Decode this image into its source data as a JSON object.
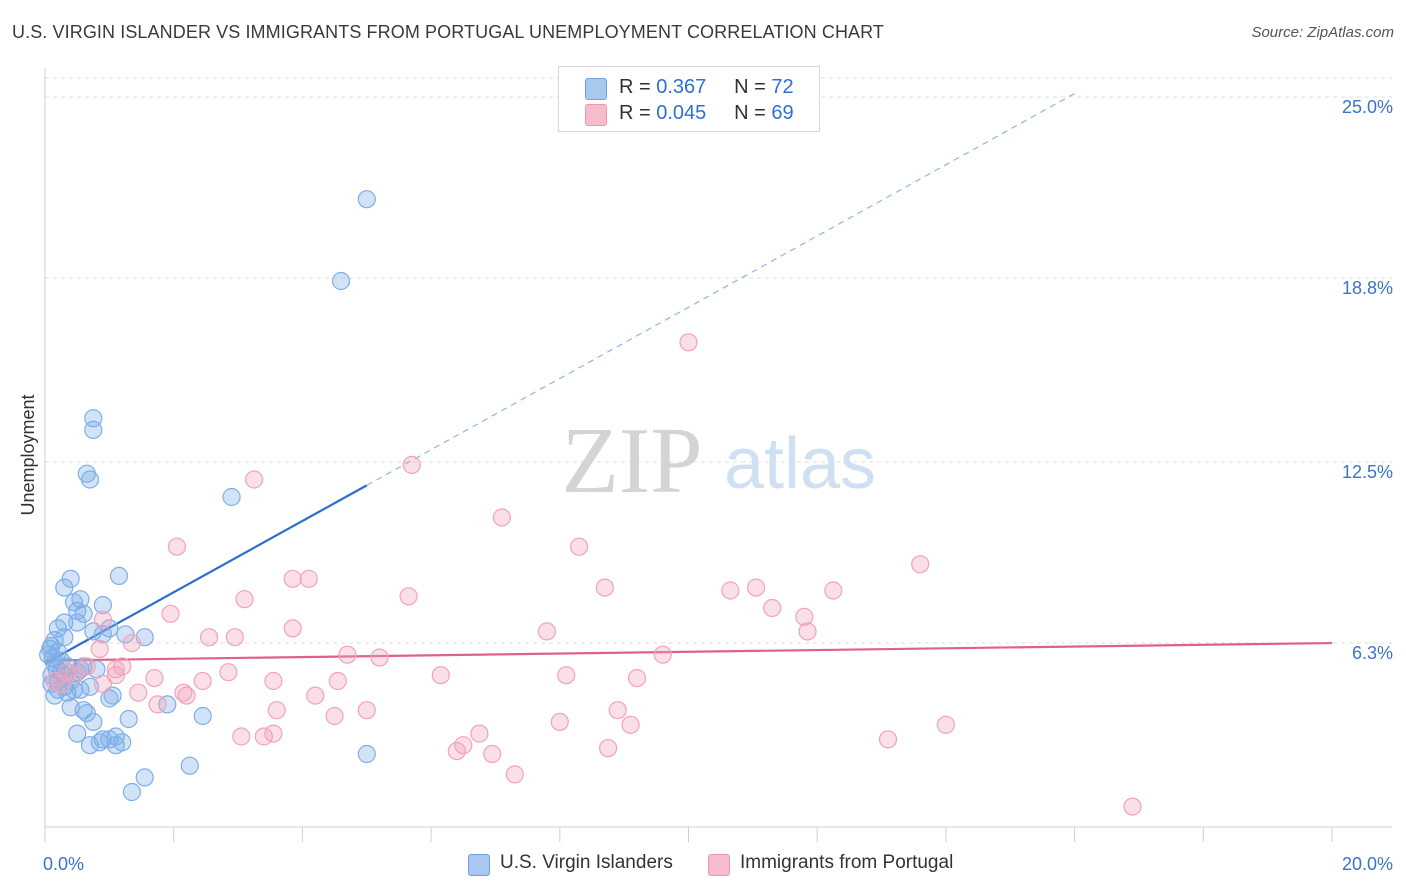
{
  "header": {
    "title": "U.S. VIRGIN ISLANDER VS IMMIGRANTS FROM PORTUGAL UNEMPLOYMENT CORRELATION CHART",
    "source": "Source: ZipAtlas.com"
  },
  "watermark": {
    "zip": "ZIP",
    "atlas": "atlas"
  },
  "stats_legend": {
    "rows": [
      {
        "r_label": "R =",
        "r_value": "0.367",
        "n_label": "N =",
        "n_value": "72",
        "color": "#a9c8f0"
      },
      {
        "r_label": "R =",
        "r_value": "0.045",
        "n_label": "N =",
        "n_value": "69",
        "color": "#f6bccc"
      }
    ]
  },
  "chart_data": {
    "type": "scatter",
    "title": "U.S. VIRGIN ISLANDER VS IMMIGRANTS FROM PORTUGAL UNEMPLOYMENT CORRELATION CHART",
    "xlabel": "",
    "ylabel": "Unemployment",
    "xlim": [
      0,
      20
    ],
    "ylim": [
      0,
      25.0
    ],
    "x_tick_labels": [
      "0.0%",
      "20.0%"
    ],
    "y_ticks": [
      6.3,
      12.5,
      18.8,
      25.0
    ],
    "y_tick_labels": [
      "6.3%",
      "12.5%",
      "18.8%",
      "25.0%"
    ],
    "grid": "horizontal dashed",
    "legend_position": "bottom",
    "series": [
      {
        "name": "U.S. Virgin Islanders",
        "color": "#7eaee8",
        "line_color": "#2a6fd0",
        "trend": {
          "x0": 0.0,
          "y0": 5.6,
          "x1": 5.0,
          "y1": 11.7,
          "dashed_to_x": 20.0
        },
        "points": [
          [
            5.0,
            21.5
          ],
          [
            4.6,
            18.7
          ],
          [
            0.75,
            14.0
          ],
          [
            0.75,
            13.6
          ],
          [
            0.65,
            12.1
          ],
          [
            0.7,
            11.9
          ],
          [
            2.9,
            11.3
          ],
          [
            1.15,
            8.6
          ],
          [
            0.4,
            8.5
          ],
          [
            0.3,
            8.2
          ],
          [
            0.55,
            7.8
          ],
          [
            0.45,
            7.7
          ],
          [
            0.5,
            7.4
          ],
          [
            0.9,
            7.6
          ],
          [
            0.6,
            7.3
          ],
          [
            0.3,
            7.0
          ],
          [
            0.5,
            7.0
          ],
          [
            0.2,
            6.8
          ],
          [
            0.75,
            6.7
          ],
          [
            0.9,
            6.6
          ],
          [
            1.0,
            6.8
          ],
          [
            1.25,
            6.6
          ],
          [
            1.55,
            6.5
          ],
          [
            0.3,
            6.5
          ],
          [
            0.15,
            6.4
          ],
          [
            0.1,
            6.2
          ],
          [
            0.2,
            6.0
          ],
          [
            0.12,
            5.8
          ],
          [
            0.05,
            5.9
          ],
          [
            0.15,
            5.6
          ],
          [
            0.25,
            5.7
          ],
          [
            0.35,
            5.5
          ],
          [
            0.55,
            5.4
          ],
          [
            0.6,
            5.5
          ],
          [
            0.8,
            5.4
          ],
          [
            0.3,
            5.2
          ],
          [
            0.4,
            5.0
          ],
          [
            0.2,
            5.0
          ],
          [
            0.1,
            4.9
          ],
          [
            0.45,
            4.7
          ],
          [
            0.55,
            4.7
          ],
          [
            0.7,
            4.8
          ],
          [
            0.35,
            4.6
          ],
          [
            0.2,
            4.7
          ],
          [
            0.15,
            4.5
          ],
          [
            1.05,
            4.5
          ],
          [
            1.0,
            4.4
          ],
          [
            0.4,
            4.1
          ],
          [
            0.6,
            4.0
          ],
          [
            0.65,
            3.9
          ],
          [
            1.9,
            4.2
          ],
          [
            2.45,
            3.8
          ],
          [
            1.3,
            3.7
          ],
          [
            0.75,
            3.6
          ],
          [
            0.5,
            3.2
          ],
          [
            1.0,
            3.0
          ],
          [
            1.1,
            3.1
          ],
          [
            0.85,
            2.9
          ],
          [
            0.9,
            3.0
          ],
          [
            1.2,
            2.9
          ],
          [
            0.7,
            2.8
          ],
          [
            1.1,
            2.8
          ],
          [
            5.0,
            2.5
          ],
          [
            2.25,
            2.1
          ],
          [
            1.55,
            1.7
          ],
          [
            1.35,
            1.2
          ],
          [
            0.25,
            5.3
          ],
          [
            0.1,
            5.2
          ],
          [
            0.3,
            4.8
          ],
          [
            0.5,
            5.3
          ],
          [
            0.08,
            6.1
          ],
          [
            0.18,
            5.4
          ]
        ]
      },
      {
        "name": "Immigrants from Portugal",
        "color": "#f2a3bb",
        "line_color": "#e0608c",
        "trend": {
          "x0": 0.0,
          "y0": 5.7,
          "x1": 20.0,
          "y1": 6.3
        },
        "points": [
          [
            10.0,
            16.6
          ],
          [
            5.7,
            12.4
          ],
          [
            3.25,
            11.9
          ],
          [
            7.1,
            10.6
          ],
          [
            2.05,
            9.6
          ],
          [
            8.3,
            9.6
          ],
          [
            13.6,
            9.0
          ],
          [
            3.85,
            8.5
          ],
          [
            4.1,
            8.5
          ],
          [
            8.7,
            8.2
          ],
          [
            10.65,
            8.1
          ],
          [
            11.05,
            8.2
          ],
          [
            12.25,
            8.1
          ],
          [
            5.65,
            7.9
          ],
          [
            3.1,
            7.8
          ],
          [
            11.3,
            7.5
          ],
          [
            1.95,
            7.3
          ],
          [
            11.8,
            7.2
          ],
          [
            0.9,
            7.1
          ],
          [
            3.85,
            6.8
          ],
          [
            7.8,
            6.7
          ],
          [
            11.85,
            6.7
          ],
          [
            2.55,
            6.5
          ],
          [
            2.95,
            6.5
          ],
          [
            1.35,
            6.3
          ],
          [
            0.85,
            6.1
          ],
          [
            4.7,
            5.9
          ],
          [
            5.2,
            5.8
          ],
          [
            9.6,
            5.9
          ],
          [
            1.1,
            5.4
          ],
          [
            1.1,
            5.2
          ],
          [
            2.85,
            5.3
          ],
          [
            6.15,
            5.2
          ],
          [
            8.1,
            5.2
          ],
          [
            9.2,
            5.1
          ],
          [
            1.7,
            5.1
          ],
          [
            2.45,
            5.0
          ],
          [
            3.55,
            5.0
          ],
          [
            4.55,
            5.0
          ],
          [
            0.15,
            5.0
          ],
          [
            2.15,
            4.6
          ],
          [
            1.45,
            4.6
          ],
          [
            2.2,
            4.5
          ],
          [
            4.2,
            4.5
          ],
          [
            0.25,
            4.9
          ],
          [
            1.75,
            4.2
          ],
          [
            3.6,
            4.0
          ],
          [
            8.9,
            4.0
          ],
          [
            4.5,
            3.8
          ],
          [
            5.0,
            4.0
          ],
          [
            8.0,
            3.6
          ],
          [
            9.1,
            3.5
          ],
          [
            14.0,
            3.5
          ],
          [
            3.05,
            3.1
          ],
          [
            3.4,
            3.1
          ],
          [
            3.55,
            3.2
          ],
          [
            6.75,
            3.2
          ],
          [
            13.1,
            3.0
          ],
          [
            6.5,
            2.8
          ],
          [
            6.4,
            2.6
          ],
          [
            6.95,
            2.5
          ],
          [
            8.75,
            2.7
          ],
          [
            7.3,
            1.8
          ],
          [
            16.9,
            0.7
          ],
          [
            0.35,
            5.3
          ],
          [
            0.65,
            5.5
          ],
          [
            0.9,
            4.9
          ],
          [
            1.2,
            5.5
          ],
          [
            0.45,
            5.2
          ]
        ]
      }
    ]
  },
  "bottom_legend": [
    {
      "label": "U.S. Virgin Islanders",
      "color": "#a9c8f0"
    },
    {
      "label": "Immigrants from Portugal",
      "color": "#f6bccc"
    }
  ]
}
